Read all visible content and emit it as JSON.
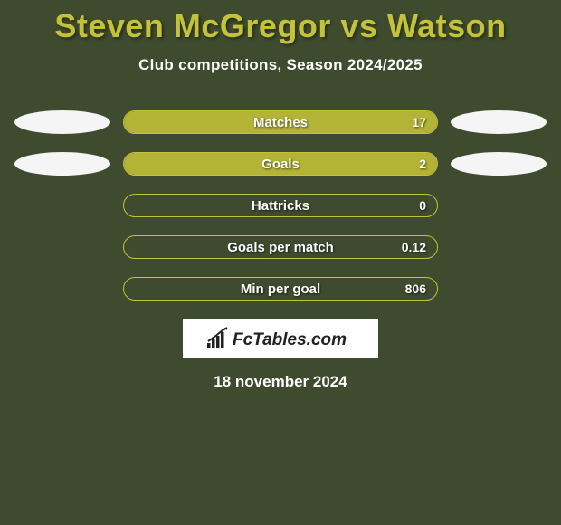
{
  "title": "Steven McGregor vs Watson",
  "subtitle": "Club competitions, Season 2024/2025",
  "colors": {
    "background": "#3f4b2f",
    "accent": "#c3c239",
    "bar_fill": "#b3b336",
    "bar_border": "#c3c239",
    "text": "#ffffff",
    "ellipse": "#f5f5f5"
  },
  "typography": {
    "title_fontsize": 36,
    "subtitle_fontsize": 17,
    "bar_label_fontsize": 15
  },
  "stats": [
    {
      "label": "Matches",
      "value": "17",
      "fill_pct": 100,
      "show_ellipses": true
    },
    {
      "label": "Goals",
      "value": "2",
      "fill_pct": 100,
      "show_ellipses": true
    },
    {
      "label": "Hattricks",
      "value": "0",
      "fill_pct": 0,
      "show_ellipses": false
    },
    {
      "label": "Goals per match",
      "value": "0.12",
      "fill_pct": 0,
      "show_ellipses": false
    },
    {
      "label": "Min per goal",
      "value": "806",
      "fill_pct": 0,
      "show_ellipses": false
    }
  ],
  "brand": "FcTables.com",
  "date": "18 november 2024"
}
